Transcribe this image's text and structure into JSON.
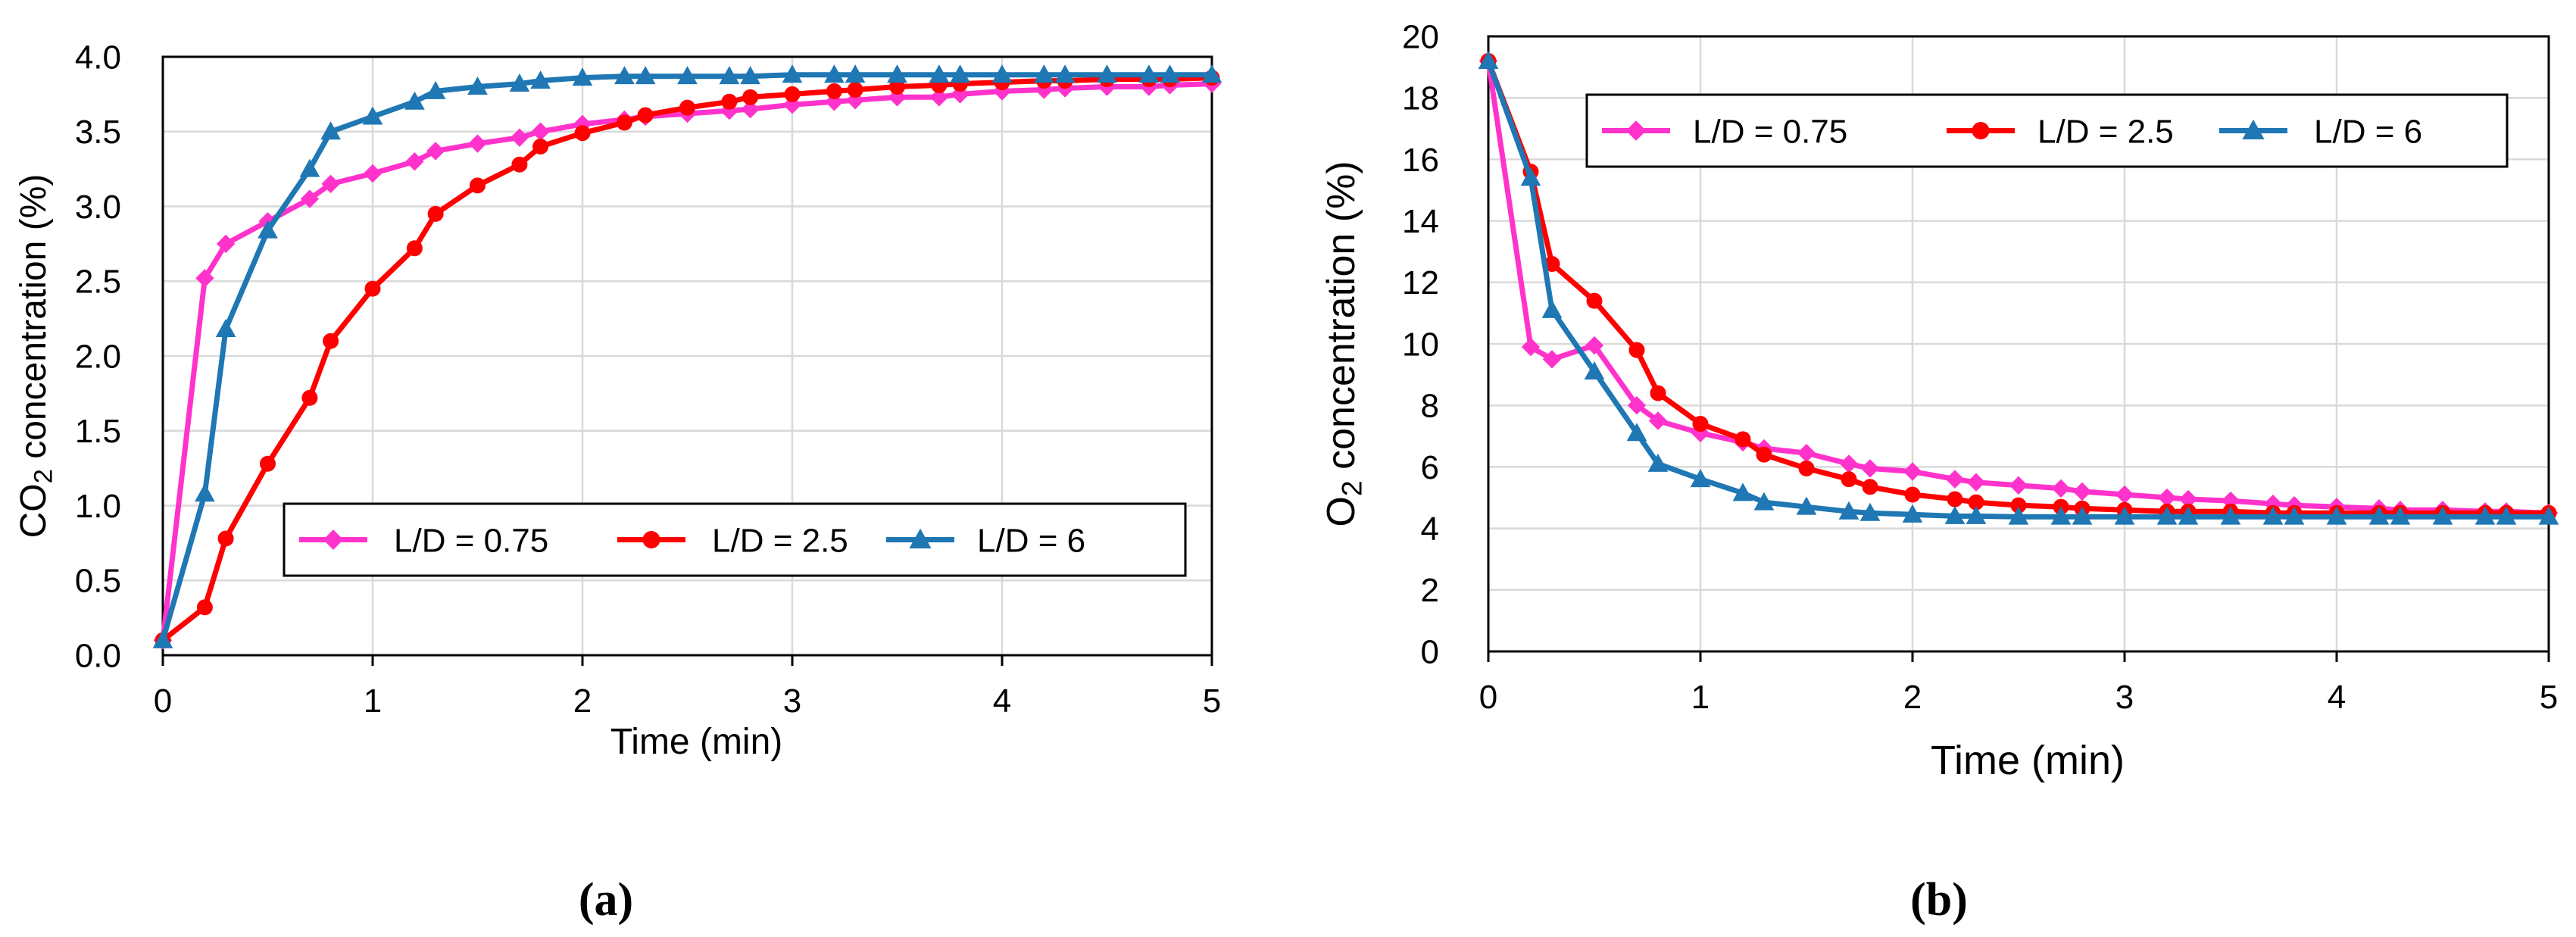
{
  "chart_data": [
    {
      "type": "line",
      "panel_label": "(a)",
      "title": "",
      "xlabel": "Time (min)",
      "ylabel_main": "CO",
      "ylabel_sub": "2",
      "ylabel_rest": " concentration (%)",
      "xlim": [
        0,
        5
      ],
      "ylim": [
        0,
        4
      ],
      "xticks": [
        0,
        1,
        2,
        3,
        4,
        5
      ],
      "xtick_labels": [
        "0",
        "1",
        "2",
        "3",
        "4",
        "5"
      ],
      "yticks": [
        0,
        0.5,
        1,
        1.5,
        2,
        2.5,
        3,
        3.5,
        4
      ],
      "ytick_labels": [
        "0.0",
        "0.5",
        "1.0",
        "1.5",
        "2.0",
        "2.5",
        "3.0",
        "3.5",
        "4.0"
      ],
      "grid": true,
      "legend_position": "lower-right",
      "series": [
        {
          "name": "L/D = 0.75",
          "color": "#FF33CC",
          "marker": "diamond",
          "x": [
            0,
            0.2,
            0.3,
            0.5,
            0.7,
            0.8,
            1.0,
            1.2,
            1.3,
            1.5,
            1.7,
            1.8,
            2.0,
            2.2,
            2.3,
            2.5,
            2.7,
            2.8,
            3.0,
            3.2,
            3.3,
            3.5,
            3.7,
            3.8,
            4.0,
            4.2,
            4.3,
            4.5,
            4.7,
            4.8,
            5.0
          ],
          "y": [
            0.1,
            2.52,
            2.75,
            2.9,
            3.05,
            3.15,
            3.22,
            3.3,
            3.37,
            3.42,
            3.46,
            3.5,
            3.55,
            3.58,
            3.6,
            3.62,
            3.64,
            3.65,
            3.68,
            3.7,
            3.71,
            3.73,
            3.73,
            3.75,
            3.77,
            3.78,
            3.79,
            3.8,
            3.8,
            3.81,
            3.82
          ]
        },
        {
          "name": "L/D = 2.5",
          "color": "#FF0000",
          "marker": "circle",
          "x": [
            0,
            0.2,
            0.3,
            0.5,
            0.7,
            0.8,
            1.0,
            1.2,
            1.3,
            1.5,
            1.7,
            1.8,
            2.0,
            2.2,
            2.3,
            2.5,
            2.7,
            2.8,
            3.0,
            3.2,
            3.3,
            3.5,
            3.7,
            3.8,
            4.0,
            4.2,
            4.3,
            4.5,
            4.7,
            4.8,
            5.0
          ],
          "y": [
            0.1,
            0.32,
            0.78,
            1.28,
            1.72,
            2.1,
            2.45,
            2.72,
            2.95,
            3.14,
            3.28,
            3.4,
            3.49,
            3.56,
            3.61,
            3.66,
            3.7,
            3.73,
            3.75,
            3.77,
            3.78,
            3.8,
            3.81,
            3.82,
            3.83,
            3.84,
            3.84,
            3.85,
            3.85,
            3.85,
            3.86
          ]
        },
        {
          "name": "L/D = 6",
          "color": "#1F77B4",
          "marker": "triangle",
          "x": [
            0,
            0.2,
            0.3,
            0.5,
            0.7,
            0.8,
            1.0,
            1.2,
            1.3,
            1.5,
            1.7,
            1.8,
            2.0,
            2.2,
            2.3,
            2.5,
            2.7,
            2.8,
            3.0,
            3.2,
            3.3,
            3.5,
            3.7,
            3.8,
            4.0,
            4.2,
            4.3,
            4.5,
            4.7,
            4.8,
            5.0
          ],
          "y": [
            0.1,
            1.08,
            2.18,
            2.84,
            3.25,
            3.5,
            3.6,
            3.7,
            3.77,
            3.8,
            3.82,
            3.84,
            3.86,
            3.87,
            3.87,
            3.87,
            3.87,
            3.87,
            3.88,
            3.88,
            3.88,
            3.88,
            3.88,
            3.88,
            3.88,
            3.88,
            3.88,
            3.88,
            3.88,
            3.88,
            3.88
          ]
        }
      ]
    },
    {
      "type": "line",
      "panel_label": "(b)",
      "title": "",
      "xlabel": "Time (min)",
      "ylabel_main": "O",
      "ylabel_sub": "2",
      "ylabel_rest": " concentration (%)",
      "xlim": [
        0,
        5
      ],
      "ylim": [
        0,
        20
      ],
      "xticks": [
        0,
        1,
        2,
        3,
        4,
        5
      ],
      "xtick_labels": [
        "0",
        "1",
        "2",
        "3",
        "4",
        "5"
      ],
      "yticks": [
        0,
        2,
        4,
        6,
        8,
        10,
        12,
        14,
        16,
        18,
        20
      ],
      "ytick_labels": [
        "0",
        "2",
        "4",
        "6",
        "8",
        "10",
        "12",
        "14",
        "16",
        "18",
        "20"
      ],
      "grid": true,
      "legend_position": "upper-right",
      "series": [
        {
          "name": "L/D = 0.75",
          "color": "#FF33CC",
          "marker": "diamond",
          "x": [
            0,
            0.2,
            0.3,
            0.5,
            0.7,
            0.8,
            1.0,
            1.2,
            1.3,
            1.5,
            1.7,
            1.8,
            2.0,
            2.2,
            2.3,
            2.5,
            2.7,
            2.8,
            3.0,
            3.2,
            3.3,
            3.5,
            3.7,
            3.8,
            4.0,
            4.2,
            4.3,
            4.5,
            4.7,
            4.8,
            5.0
          ],
          "y": [
            19.2,
            9.9,
            9.5,
            9.95,
            8.0,
            7.5,
            7.1,
            6.8,
            6.6,
            6.45,
            6.1,
            5.95,
            5.85,
            5.6,
            5.5,
            5.4,
            5.3,
            5.2,
            5.1,
            5.0,
            4.95,
            4.9,
            4.8,
            4.75,
            4.7,
            4.65,
            4.6,
            4.6,
            4.55,
            4.55,
            4.5
          ]
        },
        {
          "name": "L/D = 2.5",
          "color": "#FF0000",
          "marker": "circle",
          "x": [
            0,
            0.2,
            0.3,
            0.5,
            0.7,
            0.8,
            1.0,
            1.2,
            1.3,
            1.5,
            1.7,
            1.8,
            2.0,
            2.2,
            2.3,
            2.5,
            2.7,
            2.8,
            3.0,
            3.2,
            3.3,
            3.5,
            3.7,
            3.8,
            4.0,
            4.2,
            4.3,
            4.5,
            4.7,
            4.8,
            5.0
          ],
          "y": [
            19.2,
            15.6,
            12.6,
            11.4,
            9.8,
            8.4,
            7.4,
            6.9,
            6.4,
            5.95,
            5.6,
            5.35,
            5.1,
            4.95,
            4.85,
            4.75,
            4.7,
            4.65,
            4.6,
            4.55,
            4.55,
            4.55,
            4.5,
            4.5,
            4.5,
            4.5,
            4.5,
            4.5,
            4.5,
            4.5,
            4.5
          ]
        },
        {
          "name": "L/D = 6",
          "color": "#1F77B4",
          "marker": "triangle",
          "x": [
            0,
            0.2,
            0.3,
            0.5,
            0.7,
            0.8,
            1.0,
            1.2,
            1.3,
            1.5,
            1.7,
            1.8,
            2.0,
            2.2,
            2.3,
            2.5,
            2.7,
            2.8,
            3.0,
            3.2,
            3.3,
            3.5,
            3.7,
            3.8,
            4.0,
            4.2,
            4.3,
            4.5,
            4.7,
            4.8,
            5.0
          ],
          "y": [
            19.2,
            15.4,
            11.1,
            9.1,
            7.1,
            6.1,
            5.6,
            5.15,
            4.85,
            4.7,
            4.55,
            4.5,
            4.45,
            4.4,
            4.4,
            4.38,
            4.38,
            4.38,
            4.38,
            4.38,
            4.38,
            4.38,
            4.38,
            4.38,
            4.38,
            4.38,
            4.38,
            4.38,
            4.38,
            4.38,
            4.38
          ]
        }
      ]
    }
  ]
}
